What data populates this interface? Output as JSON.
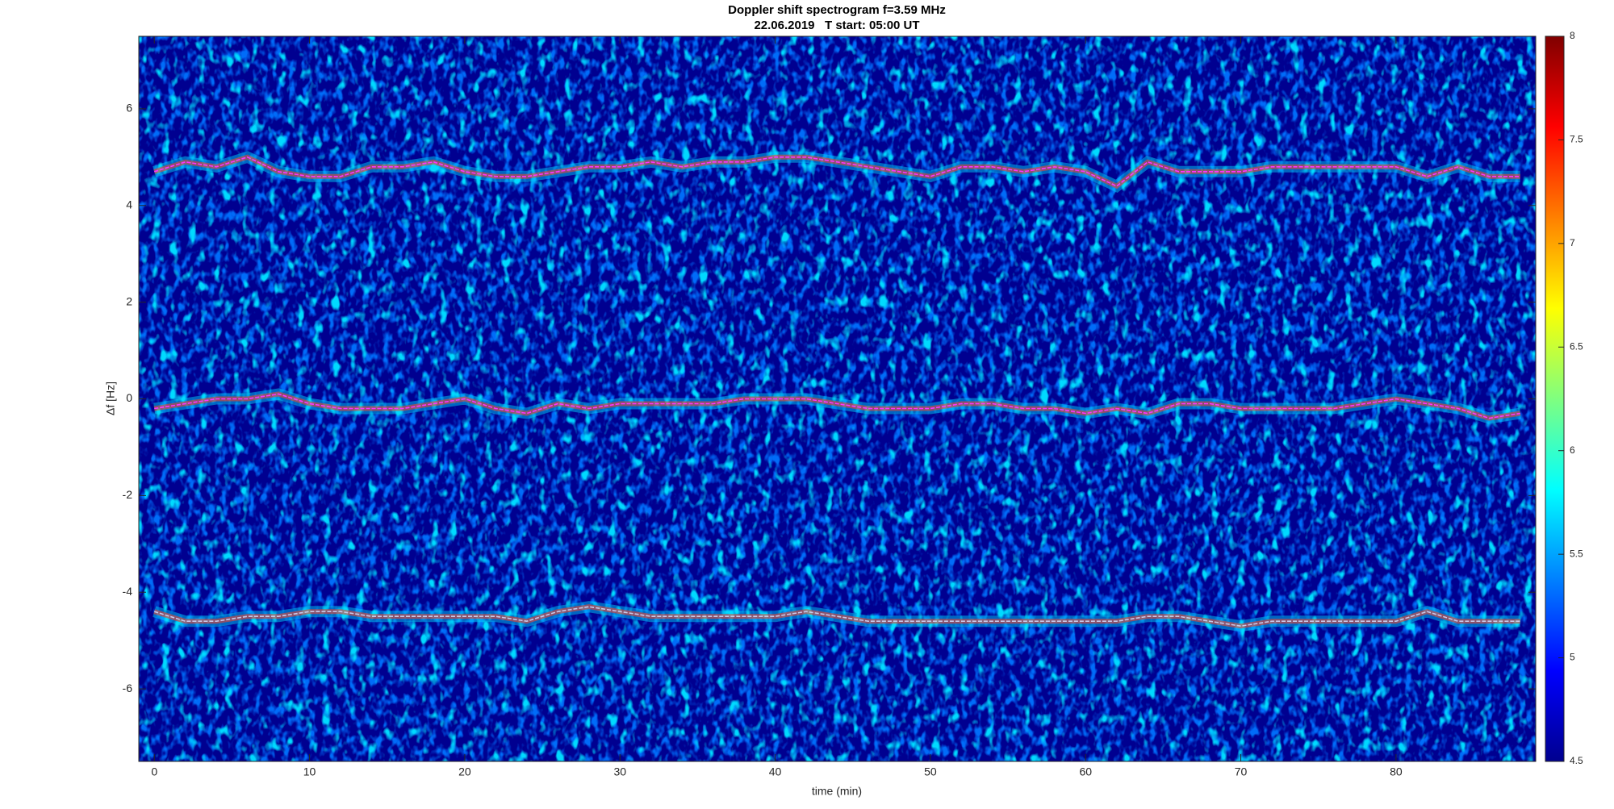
{
  "chart_data": {
    "type": "spectrogram",
    "title": "Doppler shift spectrogram f=3.59 MHz",
    "subtitle": "22.06.2019   T start: 05:00 UT",
    "x_label": "time (min)",
    "y_label": "Δf [Hz]",
    "xlim": [
      -1,
      89
    ],
    "ylim": [
      -7.5,
      7.5
    ],
    "xticks": [
      0,
      10,
      20,
      30,
      40,
      50,
      60,
      70,
      80
    ],
    "yticks": [
      -6,
      -4,
      -2,
      0,
      2,
      4,
      6
    ],
    "colormap": "jet",
    "clim": [
      4.5,
      8
    ],
    "cticks": [
      4.5,
      5,
      5.5,
      6,
      6.5,
      7,
      7.5,
      8
    ],
    "x": [
      0,
      2,
      4,
      6,
      8,
      10,
      12,
      14,
      16,
      18,
      20,
      22,
      24,
      26,
      28,
      30,
      32,
      34,
      36,
      38,
      40,
      42,
      44,
      46,
      48,
      50,
      52,
      54,
      56,
      58,
      60,
      62,
      64,
      66,
      68,
      70,
      72,
      74,
      76,
      78,
      80,
      82,
      84,
      86,
      88
    ],
    "series": [
      {
        "color": "#ff33ff",
        "values": [
          4.7,
          4.9,
          4.8,
          5.0,
          4.7,
          4.6,
          4.6,
          4.8,
          4.8,
          4.9,
          4.7,
          4.6,
          4.6,
          4.7,
          4.8,
          4.8,
          4.9,
          4.8,
          4.9,
          4.9,
          5.0,
          5.0,
          4.9,
          4.8,
          4.7,
          4.6,
          4.8,
          4.8,
          4.7,
          4.8,
          4.7,
          4.4,
          4.9,
          4.7,
          4.7,
          4.7,
          4.8,
          4.8,
          4.8,
          4.8,
          4.8,
          4.6,
          4.8,
          4.6,
          4.6
        ]
      },
      {
        "color": "#ff33ff",
        "values": [
          -0.2,
          -0.1,
          0.0,
          0.0,
          0.1,
          -0.1,
          -0.2,
          -0.2,
          -0.2,
          -0.1,
          0.0,
          -0.2,
          -0.3,
          -0.1,
          -0.2,
          -0.1,
          -0.1,
          -0.1,
          -0.1,
          0.0,
          0.0,
          0.0,
          -0.1,
          -0.2,
          -0.2,
          -0.2,
          -0.1,
          -0.1,
          -0.2,
          -0.2,
          -0.3,
          -0.2,
          -0.3,
          -0.1,
          -0.1,
          -0.2,
          -0.2,
          -0.2,
          -0.2,
          -0.1,
          0.0,
          -0.1,
          -0.2,
          -0.4,
          -0.3
        ]
      },
      {
        "color": "#c8c8e8",
        "values": [
          -4.4,
          -4.6,
          -4.6,
          -4.5,
          -4.5,
          -4.4,
          -4.4,
          -4.5,
          -4.5,
          -4.5,
          -4.5,
          -4.5,
          -4.6,
          -4.4,
          -4.3,
          -4.4,
          -4.5,
          -4.5,
          -4.5,
          -4.5,
          -4.5,
          -4.4,
          -4.5,
          -4.6,
          -4.6,
          -4.6,
          -4.6,
          -4.6,
          -4.6,
          -4.6,
          -4.6,
          -4.6,
          -4.5,
          -4.5,
          -4.6,
          -4.7,
          -4.6,
          -4.6,
          -4.6,
          -4.6,
          -4.6,
          -4.4,
          -4.6,
          -4.6,
          -4.6
        ]
      }
    ]
  }
}
